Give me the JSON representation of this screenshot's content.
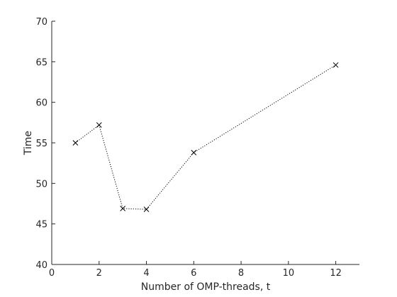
{
  "chart_data": {
    "type": "line",
    "title": "",
    "xlabel": "Number of OMP-threads, t",
    "ylabel": "Time",
    "xlim": [
      0,
      13
    ],
    "ylim": [
      40,
      70
    ],
    "xticks": [
      0,
      2,
      4,
      6,
      8,
      10,
      12
    ],
    "yticks": [
      40,
      45,
      50,
      55,
      60,
      65,
      70
    ],
    "grid": false,
    "line_style": "dotted",
    "marker": "x",
    "line_color": "#000000",
    "x": [
      1,
      2,
      3,
      4,
      6,
      12
    ],
    "y": [
      55.0,
      57.2,
      46.9,
      46.8,
      53.8,
      64.6
    ]
  }
}
